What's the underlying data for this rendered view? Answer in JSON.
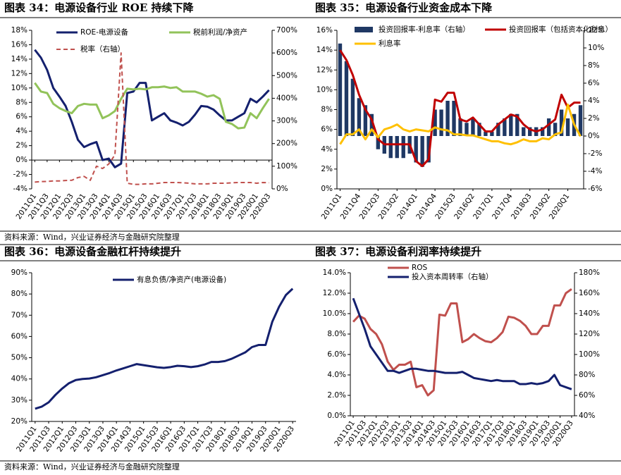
{
  "chart_data": [
    {
      "type": "line",
      "title": "图表 34：电源设备行业 ROE 持续下降",
      "categories": [
        "2011Q1",
        null,
        "2011Q3",
        null,
        "2012Q1",
        null,
        "2012Q3",
        null,
        "2013Q1",
        null,
        "2013Q3",
        null,
        "2014Q1",
        null,
        "2014Q3",
        null,
        "2015Q1",
        null,
        "2015Q3",
        null,
        "2016Q1",
        null,
        "2016Q3",
        null,
        "2017Q1",
        null,
        "2017Q3",
        null,
        "2018Q1",
        null,
        "2018Q3",
        null,
        "2019Q1",
        null,
        "2019Q3",
        null,
        "2020Q1",
        null,
        "2020Q3"
      ],
      "ylim": [
        -4,
        18
      ],
      "yticks": [
        {
          "value": -4,
          "label": "-4%"
        },
        {
          "value": -2,
          "label": "-2%"
        },
        {
          "value": 0,
          "label": "0%"
        },
        {
          "value": 2,
          "label": "2%"
        },
        {
          "value": 4,
          "label": "4%"
        },
        {
          "value": 6,
          "label": "6%"
        },
        {
          "value": 8,
          "label": "8%"
        },
        {
          "value": 10,
          "label": "10%"
        },
        {
          "value": 12,
          "label": "12%"
        },
        {
          "value": 14,
          "label": "14%"
        },
        {
          "value": 16,
          "label": "16%"
        },
        {
          "value": 18,
          "label": "18%"
        }
      ],
      "y2lim": [
        0,
        700
      ],
      "y2ticks": [
        {
          "value": 0,
          "label": "0%"
        },
        {
          "value": 100,
          "label": "100%"
        },
        {
          "value": 200,
          "label": "200%"
        },
        {
          "value": 300,
          "label": "300%"
        },
        {
          "value": 400,
          "label": "400%"
        },
        {
          "value": 500,
          "label": "500%"
        },
        {
          "value": 600,
          "label": "600%"
        },
        {
          "value": 700,
          "label": "700%"
        }
      ],
      "series": [
        {
          "name": "ROE-电源设备",
          "color": "#14206e",
          "values": [
            15.3,
            14.2,
            12.5,
            10,
            8.8,
            7.5,
            5.3,
            2.8,
            1.8,
            2.2,
            2.5,
            0,
            0.2,
            -1.0,
            -0.5,
            9.3,
            9.5,
            10.7,
            10.7,
            5.5,
            6,
            6.5,
            5.5,
            5.2,
            4.8,
            5.3,
            6.3,
            7.5,
            7.4,
            7.0,
            6.2,
            5.5,
            5.5,
            6,
            6.5,
            8.5,
            8.0,
            8.8,
            9.7
          ]
        },
        {
          "name": "税前利润/净资产",
          "color": "#92c35a",
          "values": [
            10.7,
            9.5,
            9.3,
            7.8,
            7.2,
            6.8,
            6.5,
            7.5,
            7.8,
            7.7,
            7.7,
            5.8,
            6.2,
            6.8,
            8.5,
            9.9,
            9.8,
            9.9,
            9.8,
            10.1,
            10.1,
            10.2,
            10,
            10.1,
            9.5,
            9.5,
            9.5,
            9.2,
            8.8,
            9.0,
            8.5,
            5.3,
            5.0,
            4.4,
            4.5,
            6.5,
            5.8,
            7.2,
            8.5
          ]
        },
        {
          "name": "税率（右轴）",
          "color": "#c0504d",
          "dash": true,
          "axis": "y2",
          "values": [
            30,
            32,
            33,
            35,
            35,
            37,
            38,
            50,
            55,
            38,
            100,
            90,
            110,
            150,
            600,
            25,
            20,
            20,
            22,
            22,
            25,
            28,
            28,
            28,
            27,
            25,
            22,
            22,
            22,
            25,
            25,
            25,
            27,
            28,
            28,
            28,
            25,
            28,
            27
          ]
        }
      ]
    },
    {
      "type": "combo",
      "title": "图表 35：电源设备行业资金成本下降",
      "categories": [
        "2011Q1",
        null,
        null,
        "2011Q4",
        null,
        null,
        "2012Q3",
        null,
        null,
        "2013Q2",
        null,
        null,
        "2014Q1",
        null,
        null,
        "2014Q4",
        null,
        null,
        "2015Q3",
        null,
        null,
        "2016Q2",
        null,
        null,
        "2017Q1",
        null,
        null,
        "2017Q4",
        null,
        null,
        "2018Q3",
        null,
        null,
        "2019Q2",
        null,
        null,
        "2020Q1",
        null,
        null
      ],
      "ylim": [
        0,
        16
      ],
      "yticks": [
        {
          "value": 0,
          "label": "0%"
        },
        {
          "value": 2,
          "label": "2%"
        },
        {
          "value": 4,
          "label": "4%"
        },
        {
          "value": 6,
          "label": "6%"
        },
        {
          "value": 8,
          "label": "8%"
        },
        {
          "value": 10,
          "label": "10%"
        },
        {
          "value": 12,
          "label": "12%"
        },
        {
          "value": 14,
          "label": "14%"
        },
        {
          "value": 16,
          "label": "16%"
        }
      ],
      "y2lim": [
        -6,
        12
      ],
      "y2ticks": [
        {
          "value": -6,
          "label": "-6%"
        },
        {
          "value": -4,
          "label": "-4%"
        },
        {
          "value": -2,
          "label": "-2%"
        },
        {
          "value": 0,
          "label": "0%"
        },
        {
          "value": 2,
          "label": "2%"
        },
        {
          "value": 4,
          "label": "4%"
        },
        {
          "value": 6,
          "label": "6%"
        },
        {
          "value": 8,
          "label": "8%"
        },
        {
          "value": 10,
          "label": "10%"
        },
        {
          "value": 12,
          "label": "12%"
        }
      ],
      "series": [
        {
          "name": "投资回报率-利息率（右轴）",
          "color": "#1f3864",
          "kind": "bar",
          "axis": "y2",
          "values": [
            10.5,
            8.5,
            6.5,
            4.3,
            3.5,
            2.5,
            -1.5,
            -2,
            -2.5,
            -2.5,
            -2.5,
            -2,
            -3,
            -3.5,
            -3,
            3,
            3,
            4,
            4,
            2,
            1.5,
            2,
            1.5,
            0.5,
            0.5,
            1.5,
            2,
            2.5,
            2.5,
            1,
            1,
            1,
            1,
            2,
            1.5,
            3,
            2,
            2.5,
            3.5
          ]
        },
        {
          "name": "投资回报率（包括资本化利息）",
          "color": "#c00000",
          "values": [
            14,
            13,
            11.5,
            9.5,
            8,
            7,
            5,
            4.5,
            4.5,
            4.5,
            4.5,
            4.5,
            2.8,
            2.3,
            3,
            9,
            8.8,
            9.7,
            9.7,
            7,
            6.8,
            7.2,
            6.5,
            5.8,
            5.8,
            6.5,
            7,
            7.5,
            7.3,
            6.5,
            6,
            5.8,
            6,
            6.5,
            7,
            9.5,
            8.2,
            8.7,
            8.7
          ]
        },
        {
          "name": "利息率",
          "color": "#ffc000",
          "values": [
            4.5,
            5.5,
            5.5,
            6,
            5,
            6,
            5.2,
            6,
            6.2,
            6.5,
            6,
            5.8,
            6,
            5.9,
            5.8,
            6.2,
            6,
            5.9,
            5.5,
            5.5,
            5.4,
            5.4,
            5.2,
            5,
            4.8,
            4.8,
            4.6,
            4.5,
            4.7,
            5.0,
            4.8,
            4.8,
            5.1,
            5.0,
            5.5,
            5.7,
            8.5,
            6.5,
            5.3
          ]
        }
      ]
    },
    {
      "type": "line",
      "title": "图表 36：电源设备金融杠杆持续提升",
      "categories": [
        "2011Q1",
        null,
        "2011Q3",
        null,
        "2012Q1",
        null,
        "2012Q3",
        null,
        "2013Q1",
        null,
        "2013Q3",
        null,
        "2014Q1",
        null,
        "2014Q3",
        null,
        "2015Q1",
        null,
        "2015Q3",
        null,
        "2016Q1",
        null,
        "2016Q3",
        null,
        "2017Q1",
        null,
        "2017Q3",
        null,
        "2018Q1",
        null,
        "2018Q3",
        null,
        "2019Q1",
        null,
        "2019Q3",
        null,
        "2020Q1",
        null,
        "2020Q3"
      ],
      "ylim": [
        20,
        90
      ],
      "yticks": [
        {
          "value": 20,
          "label": "20%"
        },
        {
          "value": 30,
          "label": "30%"
        },
        {
          "value": 40,
          "label": "40%"
        },
        {
          "value": 50,
          "label": "50%"
        },
        {
          "value": 60,
          "label": "60%"
        },
        {
          "value": 70,
          "label": "70%"
        },
        {
          "value": 80,
          "label": "80%"
        },
        {
          "value": 90,
          "label": "90%"
        }
      ],
      "series": [
        {
          "name": "有息负债/净资产(电源设备)",
          "color": "#14206e",
          "values": [
            26,
            27,
            29,
            32.5,
            35.5,
            38,
            39.5,
            40,
            40.2,
            40.8,
            41.8,
            42.8,
            44,
            45,
            46,
            47,
            46.5,
            46,
            45.5,
            45.2,
            45.6,
            46.2,
            46,
            45.6,
            46,
            46.8,
            48,
            48,
            48.4,
            49.5,
            51,
            52.5,
            55,
            56,
            56,
            67,
            74,
            79.5,
            82.5
          ]
        }
      ]
    },
    {
      "type": "line",
      "title": "图表 37：电源设备利润率持续提升",
      "categories": [
        "2011Q1",
        null,
        "2011Q3",
        null,
        "2012Q1",
        null,
        "2012Q3",
        null,
        "2013Q1",
        null,
        "2013Q3",
        null,
        "2014Q1",
        null,
        "2014Q3",
        null,
        "2015Q1",
        null,
        "2015Q3",
        null,
        "2016Q1",
        null,
        "2016Q3",
        null,
        "2017Q1",
        null,
        "2017Q3",
        null,
        "2018Q1",
        null,
        "2018Q3",
        null,
        "2019Q1",
        null,
        "2019Q3",
        null,
        "2020Q1",
        null,
        "2020Q3"
      ],
      "ylim": [
        0,
        14
      ],
      "yticks": [
        {
          "value": 0,
          "label": "0.0%"
        },
        {
          "value": 2,
          "label": "2.0%"
        },
        {
          "value": 4,
          "label": "4.0%"
        },
        {
          "value": 6,
          "label": "6.0%"
        },
        {
          "value": 8,
          "label": "8.0%"
        },
        {
          "value": 10,
          "label": "10.0%"
        },
        {
          "value": 12,
          "label": "12.0%"
        },
        {
          "value": 14,
          "label": "14.0%"
        }
      ],
      "y2lim": [
        40,
        180
      ],
      "y2ticks": [
        {
          "value": 40,
          "label": "40%"
        },
        {
          "value": 60,
          "label": "60%"
        },
        {
          "value": 80,
          "label": "80%"
        },
        {
          "value": 100,
          "label": "100%"
        },
        {
          "value": 120,
          "label": "120%"
        },
        {
          "value": 140,
          "label": "140%"
        },
        {
          "value": 160,
          "label": "160%"
        },
        {
          "value": 180,
          "label": "180%"
        }
      ],
      "series": [
        {
          "name": "ROS",
          "color": "#c0504d",
          "values": [
            9.2,
            9.8,
            9.5,
            8.5,
            8.0,
            7.0,
            5.3,
            4.5,
            5.0,
            5.0,
            5.3,
            2.8,
            3.0,
            2.0,
            2.5,
            9.9,
            9.8,
            11,
            11,
            7.2,
            7.5,
            8.0,
            7.6,
            7.3,
            7.2,
            7.6,
            8.2,
            9.7,
            9.6,
            9.3,
            8.8,
            8.0,
            8.0,
            8.8,
            8.8,
            10.8,
            10.8,
            12.0,
            12.4
          ]
        },
        {
          "name": "投入资本周转率（右轴）",
          "color": "#14206e",
          "axis": "y2",
          "values": [
            155,
            140,
            125,
            108,
            100,
            92,
            84,
            84,
            82,
            84,
            86,
            86,
            85,
            84,
            84,
            83,
            82,
            82,
            82,
            83,
            80,
            77,
            76,
            75,
            74,
            75,
            74,
            74,
            74,
            71,
            71,
            72,
            71,
            72,
            74,
            80,
            70,
            68,
            66
          ]
        }
      ]
    }
  ],
  "sources": [
    "资料来源：Wind，兴业证券经济与金融研究院整理",
    "资料来源：Wind，兴业证券经济与金融研究院整理"
  ]
}
